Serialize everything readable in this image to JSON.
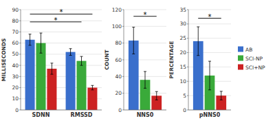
{
  "chart_data": [
    {
      "type": "bar",
      "ylabel": "MILLISECONDS",
      "categories": [
        "SDNN",
        "RMSSD"
      ],
      "series": [
        {
          "name": "AB",
          "color": "#3A6FCC",
          "values": [
            63,
            52
          ],
          "errors": [
            5,
            3
          ]
        },
        {
          "name": "SCI-NP",
          "color": "#3AAA3A",
          "values": [
            60,
            44
          ],
          "errors": [
            9,
            4
          ]
        },
        {
          "name": "SCI+NP",
          "color": "#CC2222",
          "values": [
            37,
            20
          ],
          "errors": [
            5,
            2
          ]
        }
      ],
      "ylim": [
        0,
        90
      ],
      "yticks": [
        0,
        10,
        20,
        30,
        40,
        50,
        60,
        70,
        80,
        90
      ],
      "grid": true,
      "legend": "right",
      "annotations": [
        {
          "text": "*",
          "y": 86,
          "from": {
            "category": "SDNN",
            "series": "AB"
          },
          "to": {
            "category": "RMSSD",
            "series": "SCI+NP"
          }
        },
        {
          "text": "*",
          "y": 79,
          "from": {
            "category": "SDNN",
            "series": "AB"
          },
          "to": {
            "category": "RMSSD",
            "series": "SCI-NP"
          }
        }
      ]
    },
    {
      "type": "bar",
      "ylabel": "COUNT",
      "categories": [
        "NNS0"
      ],
      "series": [
        {
          "name": "AB",
          "color": "#3A6FCC",
          "values": [
            83
          ],
          "errors": [
            16
          ]
        },
        {
          "name": "SCI-NP",
          "color": "#3AAA3A",
          "values": [
            36
          ],
          "errors": [
            10
          ]
        },
        {
          "name": "SCI+NP",
          "color": "#CC2222",
          "values": [
            17
          ],
          "errors": [
            5
          ]
        }
      ],
      "ylim": [
        0,
        120
      ],
      "yticks": [
        0,
        20,
        40,
        60,
        80,
        100,
        120
      ],
      "grid": true,
      "annotations": [
        {
          "text": "*",
          "y": 112,
          "from": {
            "category": "NNS0",
            "series": "AB"
          },
          "to": {
            "category": "NNS0",
            "series": "SCI+NP"
          }
        }
      ]
    },
    {
      "type": "bar",
      "ylabel": "PERCENTAGE",
      "categories": [
        "pNNS0"
      ],
      "series": [
        {
          "name": "AB",
          "color": "#3A6FCC",
          "values": [
            24
          ],
          "errors": [
            5
          ]
        },
        {
          "name": "SCI-NP",
          "color": "#3AAA3A",
          "values": [
            12
          ],
          "errors": [
            5
          ]
        },
        {
          "name": "SCI+NP",
          "color": "#CC2222",
          "values": [
            5
          ],
          "errors": [
            1.5
          ]
        }
      ],
      "ylim": [
        0,
        35
      ],
      "yticks": [
        0,
        5,
        10,
        15,
        20,
        25,
        30,
        35
      ],
      "grid": true,
      "annotations": [
        {
          "text": "*",
          "y": 32,
          "from": {
            "category": "pNNS0",
            "series": "AB"
          },
          "to": {
            "category": "pNNS0",
            "series": "SCI+NP"
          }
        }
      ]
    }
  ]
}
